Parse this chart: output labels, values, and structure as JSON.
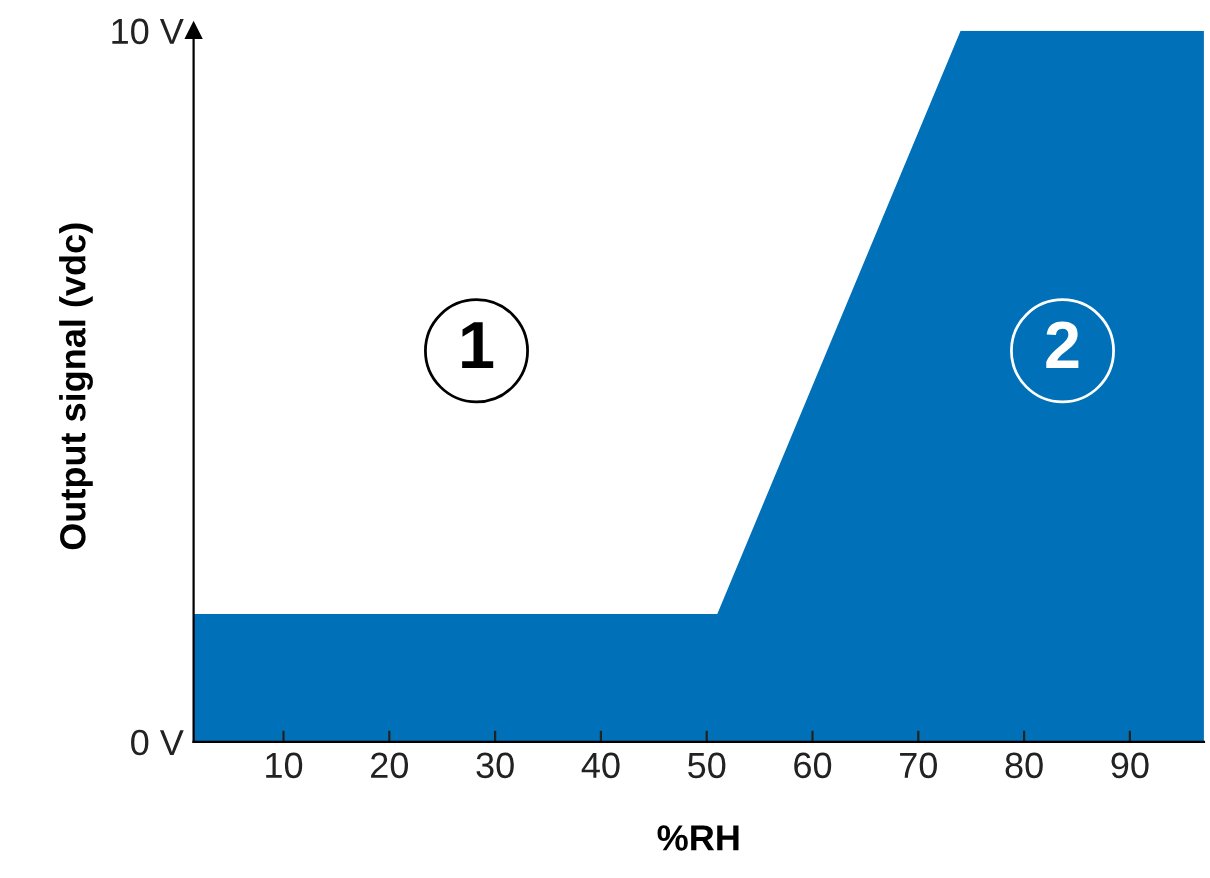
{
  "chart_data": {
    "type": "area",
    "xlabel": "%RH",
    "ylabel": "Output signal (vdc)",
    "x": [
      1.5,
      51,
      74,
      97
    ],
    "series": [
      {
        "color": "#0070b8",
        "values": [
          1.8,
          1.8,
          10,
          10
        ]
      }
    ],
    "xlim": [
      1.5,
      97
    ],
    "ylim": [
      0,
      10
    ],
    "xticks": [
      10,
      20,
      30,
      40,
      50,
      60,
      70,
      80,
      90
    ],
    "yticks": [
      {
        "value": 0,
        "label": "0 V"
      },
      {
        "value": 10,
        "label": "10 V"
      }
    ],
    "grid": false,
    "legend": false,
    "annotations": [
      "1",
      "2"
    ]
  }
}
